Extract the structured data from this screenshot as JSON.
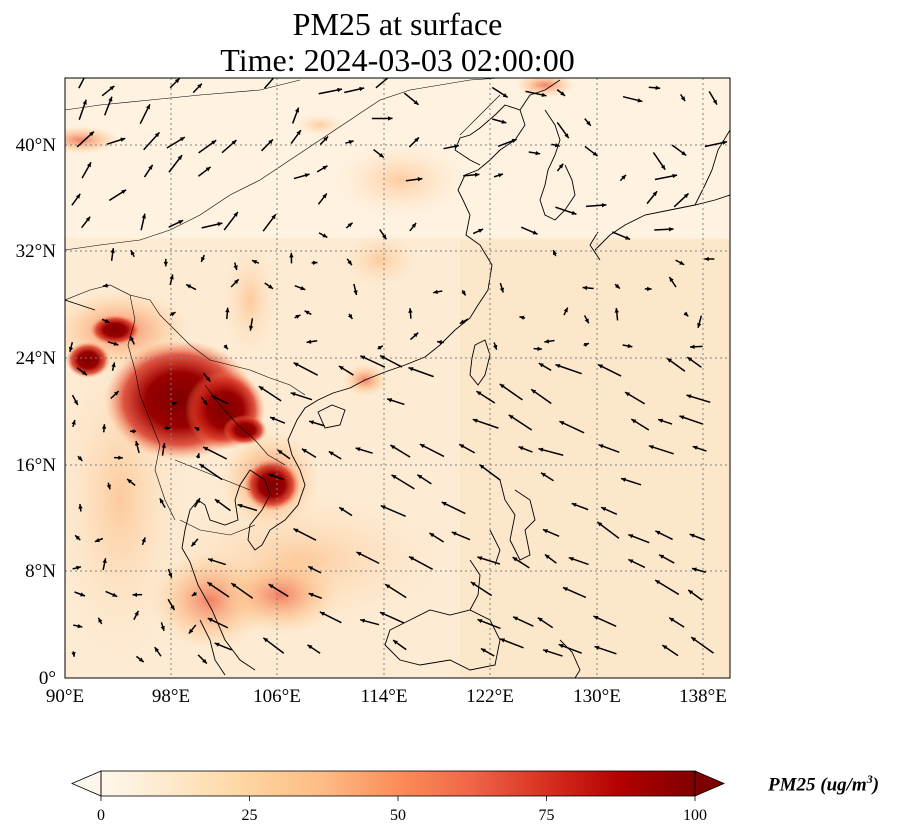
{
  "title": {
    "line1": "PM25 at surface",
    "line2": "Time: 2024-03-03 02:00:00"
  },
  "map": {
    "projection": "PlateCarree",
    "lon_range": [
      90,
      140
    ],
    "lat_range": [
      0,
      45
    ],
    "lon_ticks": [
      "90°E",
      "98°E",
      "106°E",
      "114°E",
      "122°E",
      "130°E",
      "138°E"
    ],
    "lat_ticks": [
      "0°",
      "8°N",
      "16°N",
      "24°N",
      "32°N",
      "40°N"
    ],
    "gridlines": "dotted",
    "layers": [
      "pm25-field",
      "coastlines",
      "borders",
      "wind-vectors"
    ]
  },
  "colorbar": {
    "colormap": "OrRd",
    "min": 0,
    "max": 100,
    "ticks": [
      "0",
      "25",
      "50",
      "75",
      "100"
    ],
    "extend": "both",
    "label_text": "PM25 (ug/m",
    "label_sup": "3",
    "label_close": ")",
    "colors": [
      "#fff7ec",
      "#fee8c8",
      "#fdd49e",
      "#fdbb84",
      "#fc8d59",
      "#ef6548",
      "#d7301f",
      "#b30000",
      "#7f0000"
    ]
  }
}
